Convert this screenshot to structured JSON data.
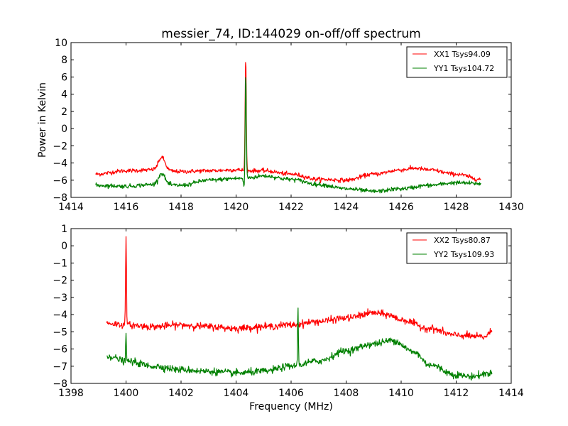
{
  "figure": {
    "title": "messier_74, ID:144029 on-off/off spectrum"
  },
  "chart_data": [
    {
      "type": "line",
      "panel": "top",
      "title": "messier_74, ID:144029 on-off/off spectrum",
      "xlabel": "",
      "ylabel": "Power in Kelvin",
      "xlim": [
        1414,
        1430
      ],
      "ylim": [
        -8,
        10
      ],
      "xticks": [
        1414,
        1416,
        1418,
        1420,
        1422,
        1424,
        1426,
        1428,
        1430
      ],
      "yticks": [
        -8,
        -6,
        -4,
        -2,
        0,
        2,
        4,
        6,
        8,
        10
      ],
      "legend_position": "top-right",
      "grid": false,
      "noise_std": 0.12,
      "series": [
        {
          "name": "XX1 Tsys94.09",
          "color": "#ff0000",
          "baseline": {
            "x": [
              1414.9,
              1416.0,
              1417.0,
              1418.0,
              1419.0,
              1420.0,
              1420.5,
              1421.0,
              1422.0,
              1423.0,
              1424.0,
              1425.0,
              1426.0,
              1426.5,
              1427.0,
              1428.0,
              1428.9
            ],
            "y": [
              -5.3,
              -4.9,
              -4.8,
              -5.0,
              -4.9,
              -4.8,
              -4.9,
              -4.9,
              -5.3,
              -5.9,
              -6.0,
              -5.3,
              -4.8,
              -4.6,
              -4.8,
              -5.3,
              -5.9
            ]
          },
          "features": [
            {
              "x": 1417.3,
              "amplitude": 1.5,
              "width": 0.12
            },
            {
              "x": 1420.35,
              "amplitude": 13.5,
              "width": 0.02
            }
          ]
        },
        {
          "name": "YY1 Tsys104.72",
          "color": "#008000",
          "baseline": {
            "x": [
              1414.9,
              1416.0,
              1417.0,
              1418.0,
              1419.0,
              1420.0,
              1420.5,
              1421.0,
              1422.0,
              1423.0,
              1424.0,
              1425.0,
              1426.0,
              1427.0,
              1428.0,
              1428.9
            ],
            "y": [
              -6.6,
              -6.7,
              -6.5,
              -6.6,
              -6.0,
              -5.8,
              -5.7,
              -5.5,
              -5.9,
              -6.5,
              -7.0,
              -7.3,
              -7.0,
              -6.6,
              -6.3,
              -6.4
            ]
          },
          "features": [
            {
              "x": 1417.3,
              "amplitude": 1.3,
              "width": 0.12
            },
            {
              "x": 1420.35,
              "amplitude": 12.5,
              "width": 0.02
            },
            {
              "x": 1420.3,
              "amplitude": -1.2,
              "width": 0.03
            }
          ]
        }
      ]
    },
    {
      "type": "line",
      "panel": "bottom",
      "title": "",
      "xlabel": "Frequency (MHz)",
      "ylabel": "",
      "xlim": [
        1398,
        1414
      ],
      "ylim": [
        -8,
        1
      ],
      "xticks": [
        1398,
        1400,
        1402,
        1404,
        1406,
        1408,
        1410,
        1412,
        1414
      ],
      "yticks": [
        -8,
        -7,
        -6,
        -5,
        -4,
        -3,
        -2,
        -1,
        0,
        1
      ],
      "legend_position": "top-right",
      "grid": false,
      "noise_std": 0.1,
      "series": [
        {
          "name": "XX2 Tsys80.87",
          "color": "#ff0000",
          "baseline": {
            "x": [
              1399.3,
              1400.0,
              1401.0,
              1402.0,
              1403.0,
              1404.0,
              1405.0,
              1406.0,
              1407.0,
              1408.0,
              1409.0,
              1409.5,
              1410.0,
              1411.0,
              1412.0,
              1413.0,
              1413.3
            ],
            "y": [
              -4.5,
              -4.6,
              -4.7,
              -4.6,
              -4.7,
              -4.8,
              -4.7,
              -4.6,
              -4.4,
              -4.2,
              -3.9,
              -4.0,
              -4.3,
              -4.8,
              -5.2,
              -5.3,
              -5.0
            ]
          },
          "features": [
            {
              "x": 1400.0,
              "amplitude": 5.4,
              "width": 0.015
            }
          ]
        },
        {
          "name": "YY2 Tsys109.93",
          "color": "#008000",
          "baseline": {
            "x": [
              1399.3,
              1400.0,
              1401.0,
              1402.0,
              1403.0,
              1404.0,
              1405.0,
              1406.0,
              1407.0,
              1408.0,
              1409.0,
              1409.7,
              1410.5,
              1411.0,
              1412.0,
              1412.5,
              1413.3
            ],
            "y": [
              -6.4,
              -6.7,
              -7.0,
              -7.2,
              -7.3,
              -7.4,
              -7.3,
              -7.0,
              -6.7,
              -6.1,
              -5.7,
              -5.5,
              -6.2,
              -6.9,
              -7.5,
              -7.6,
              -7.4
            ]
          },
          "features": [
            {
              "x": 1400.0,
              "amplitude": 1.6,
              "width": 0.012
            },
            {
              "x": 1406.25,
              "amplitude": 3.3,
              "width": 0.015
            }
          ]
        }
      ]
    }
  ]
}
